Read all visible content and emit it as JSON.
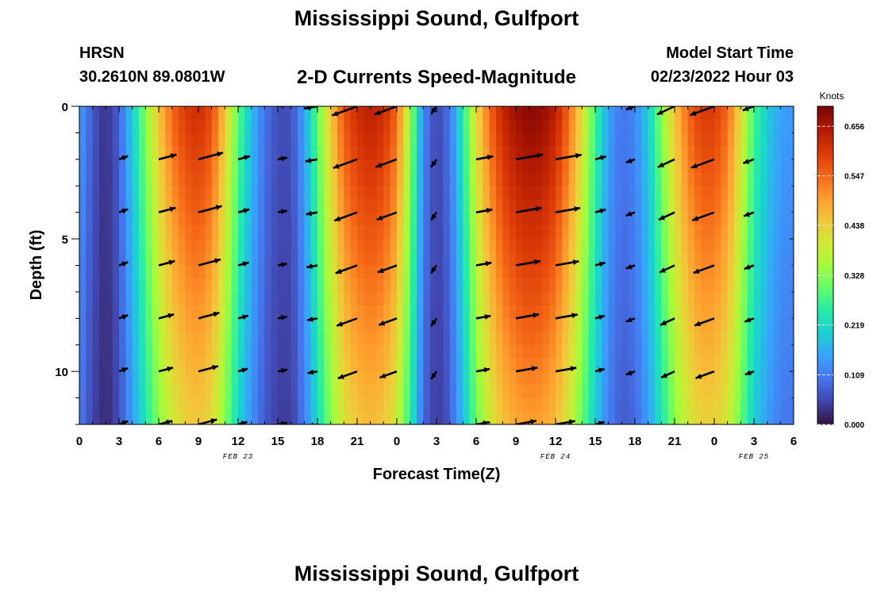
{
  "header": {
    "title": "Mississippi Sound, Gulfport",
    "station": "HRSN",
    "coordinates": "30.2610N  89.0801W",
    "subtitle": "2-D Currents Speed-Magnitude",
    "model_start_label": "Model Start Time",
    "model_start_value": "02/23/2022 Hour 03",
    "repeated_title": "Mississippi Sound, Gulfport"
  },
  "colors": {
    "colormap": [
      "#30123b",
      "#4145ab",
      "#4675ed",
      "#39a2fc",
      "#1bcfd4",
      "#24eca6",
      "#61fc6c",
      "#a4fc3b",
      "#d1e834",
      "#f3c63a",
      "#fe9b2d",
      "#f36315",
      "#d93806",
      "#b11901",
      "#7a0402"
    ],
    "frame": "#000000",
    "arrow": "#000000"
  },
  "chart_data": {
    "type": "heatmap",
    "xlabel": "Forecast Time(Z)",
    "ylabel": "Depth (ft)",
    "x_range": [
      0,
      54
    ],
    "y_range": [
      0,
      12
    ],
    "x_tick_labels": [
      "0",
      "3",
      "6",
      "9",
      "12",
      "15",
      "18",
      "21",
      "0",
      "3",
      "6",
      "9",
      "12",
      "15",
      "18",
      "21",
      "0",
      "3",
      "6"
    ],
    "y_tick_labels": [
      "0",
      "5",
      "10"
    ],
    "date_labels": [
      {
        "text": "FEB 23",
        "hour": 12
      },
      {
        "text": "FEB 24",
        "hour": 36
      },
      {
        "text": "FEB 25",
        "hour": 51
      }
    ],
    "colorbar": {
      "title": "Knots",
      "ticks": [
        "0.000",
        "0.109",
        "0.219",
        "0.328",
        "0.438",
        "0.547",
        "0.656"
      ],
      "range": [
        0,
        0.7
      ]
    },
    "speed_profile": {
      "hours": [
        0,
        1,
        2,
        3,
        4,
        5,
        6,
        7,
        8,
        9,
        10,
        11,
        12,
        13,
        14,
        15,
        16,
        17,
        18,
        19,
        20,
        21,
        22,
        23,
        24,
        25,
        26,
        27,
        28,
        29,
        30,
        31,
        32,
        33,
        34,
        35,
        36,
        37,
        38,
        39,
        40,
        41,
        42,
        43,
        44,
        45,
        46,
        47,
        48,
        49,
        50,
        51,
        52,
        53,
        54
      ],
      "surface_knots": [
        0.15,
        0.07,
        0.03,
        0.08,
        0.2,
        0.33,
        0.45,
        0.55,
        0.6,
        0.62,
        0.58,
        0.45,
        0.3,
        0.18,
        0.1,
        0.06,
        0.06,
        0.15,
        0.3,
        0.45,
        0.57,
        0.62,
        0.64,
        0.62,
        0.55,
        0.35,
        0.12,
        0.05,
        0.1,
        0.25,
        0.42,
        0.55,
        0.63,
        0.67,
        0.69,
        0.68,
        0.64,
        0.55,
        0.42,
        0.28,
        0.15,
        0.1,
        0.12,
        0.2,
        0.33,
        0.45,
        0.55,
        0.6,
        0.6,
        0.55,
        0.42,
        0.28,
        0.2,
        0.15,
        0.14
      ],
      "bottom_factor": 0.72
    },
    "vector_times": [
      3,
      6,
      9,
      12,
      15,
      18,
      21,
      24,
      27,
      30,
      33,
      36,
      39,
      42,
      45,
      48,
      51
    ],
    "vector_depths": [
      0,
      2,
      4,
      6,
      8,
      10,
      12
    ],
    "vector_angles_deg": [
      20,
      15,
      15,
      15,
      10,
      190,
      200,
      200,
      235,
      10,
      10,
      10,
      15,
      200,
      205,
      200,
      200
    ],
    "vector_scale_max_knots": 0.7
  }
}
